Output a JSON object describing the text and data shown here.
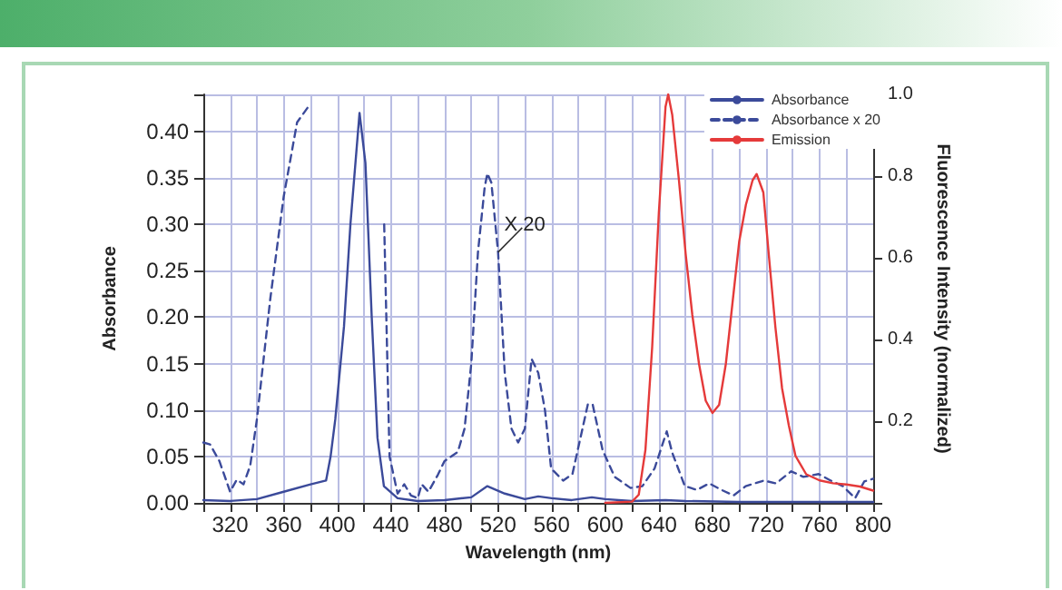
{
  "chart_data": {
    "type": "line",
    "xlabel": "Wavelength (nm)",
    "ylabel": "Absorbance",
    "y2label": "Fluorescence Intensity (normalized)",
    "xlim": [
      300,
      800
    ],
    "xticks": [
      {
        "value": 300,
        "label": null
      },
      320,
      {
        "value": 340,
        "label": null
      },
      360,
      {
        "value": 380,
        "label": null
      },
      400,
      {
        "value": 420,
        "label": null
      },
      440,
      {
        "value": 460,
        "label": null
      },
      480,
      {
        "value": 500,
        "label": null
      },
      520,
      {
        "value": 540,
        "label": null
      },
      560,
      {
        "value": 580,
        "label": null
      },
      600,
      {
        "value": 620,
        "label": null
      },
      640,
      {
        "value": 660,
        "label": null
      },
      680,
      {
        "value": 700,
        "label": null
      },
      720,
      {
        "value": 740,
        "label": null
      },
      760,
      {
        "value": 780,
        "label": null
      },
      800
    ],
    "ylim": [
      0,
      0.44
    ],
    "yticks": [
      {
        "value": 0,
        "label": "0.00"
      },
      {
        "value": 0.05,
        "label": "0.05"
      },
      {
        "value": 0.1,
        "label": "0.10"
      },
      {
        "value": 0.15,
        "label": "0.15"
      },
      {
        "value": 0.2,
        "label": "0.20"
      },
      {
        "value": 0.25,
        "label": "0.25"
      },
      {
        "value": 0.3,
        "label": "0.30"
      },
      {
        "value": 0.35,
        "label": "0.35"
      },
      {
        "value": 0.4,
        "label": "0.40"
      }
    ],
    "y2lim": [
      0,
      1
    ],
    "y2ticks": [
      0.2,
      0.4,
      0.6,
      0.8,
      {
        "value": 1,
        "label": "1.0"
      }
    ],
    "grid": true,
    "legend": "top right",
    "marker": "none",
    "annotations": [
      {
        "text": "X 20",
        "x": 520,
        "y": 0.27
      }
    ],
    "series": [
      {
        "name": "Absorbance",
        "color": "#3b4a9a",
        "line_style": "solid",
        "x": [
          300,
          320,
          340,
          360,
          380,
          391.6,
          395,
          398.5,
          405,
          409.8,
          416.6,
          421,
          425.7,
          430,
          434.8,
          445,
          460,
          480,
          500,
          512,
          525,
          540,
          550,
          560,
          575,
          590,
          600,
          620,
          645,
          660,
          700,
          750,
          800
        ],
        "values": [
          0.003,
          0.002,
          0.004,
          0.012,
          0.02,
          0.024,
          0.05,
          0.09,
          0.19,
          0.3,
          0.42,
          0.366,
          0.2,
          0.07,
          0.018,
          0.005,
          0.002,
          0.003,
          0.006,
          0.018,
          0.01,
          0.004,
          0.007,
          0.005,
          0.003,
          0.006,
          0.004,
          0.002,
          0.003,
          0.002,
          0.001,
          0.001,
          0.001
        ]
      },
      {
        "name": "Absorbance x 20",
        "color": "#3b4a9a",
        "line_style": "dashed",
        "x": [
          300,
          305,
          312,
          320,
          325,
          330,
          335,
          340,
          350,
          360,
          370,
          380,
          383,
          432,
          435,
          439,
          445,
          450,
          455,
          460,
          463,
          468,
          475,
          480,
          490,
          495,
          500,
          505,
          510,
          512,
          515,
          520,
          525,
          530,
          535,
          540,
          545,
          550,
          555,
          559.6,
          568.6,
          575.5,
          587,
          590.6,
          598,
          607,
          618.9,
          627.7,
          636.8,
          645.9,
          650,
          659.4,
          668.5,
          677.6,
          686.7,
          695.8,
          704.8,
          718.4,
          727.5,
          738.8,
          747.9,
          759.3,
          768.3,
          777.4,
          786.5,
          793.3,
          800
        ],
        "values": [
          0.065,
          0.063,
          0.045,
          0.012,
          0.025,
          0.02,
          0.04,
          0.09,
          0.22,
          0.33,
          0.41,
          0.43,
          null,
          null,
          0.3,
          0.05,
          0.01,
          0.02,
          0.008,
          0.005,
          0.02,
          0.012,
          0.03,
          0.045,
          0.055,
          0.08,
          0.15,
          0.27,
          0.34,
          0.355,
          0.345,
          0.27,
          0.14,
          0.08,
          0.065,
          0.08,
          0.155,
          0.14,
          0.1,
          0.037,
          0.024,
          0.031,
          0.106,
          0.106,
          0.057,
          0.028,
          0.016,
          0.018,
          0.037,
          0.077,
          0.054,
          0.018,
          0.014,
          0.021,
          0.014,
          0.008,
          0.018,
          0.024,
          0.021,
          0.034,
          0.028,
          0.031,
          0.024,
          0.018,
          0.005,
          0.023,
          0.026
        ]
      },
      {
        "name": "Emission",
        "color": "#e53a3a",
        "line_style": "solid",
        "axis": "y2",
        "x": [
          600,
          620,
          625,
          630,
          635,
          640,
          645,
          647,
          650,
          655,
          660,
          665,
          670,
          675,
          680,
          685,
          690,
          695,
          700,
          705,
          710,
          713,
          718,
          722,
          727,
          732,
          737,
          742,
          750,
          760,
          770,
          780,
          790,
          800
        ],
        "values": [
          0,
          0.003,
          0.02,
          0.13,
          0.38,
          0.71,
          0.97,
          1,
          0.95,
          0.79,
          0.61,
          0.46,
          0.34,
          0.25,
          0.22,
          0.24,
          0.34,
          0.49,
          0.64,
          0.73,
          0.79,
          0.805,
          0.76,
          0.61,
          0.43,
          0.28,
          0.19,
          0.115,
          0.07,
          0.055,
          0.048,
          0.045,
          0.04,
          0.03
        ]
      }
    ]
  }
}
